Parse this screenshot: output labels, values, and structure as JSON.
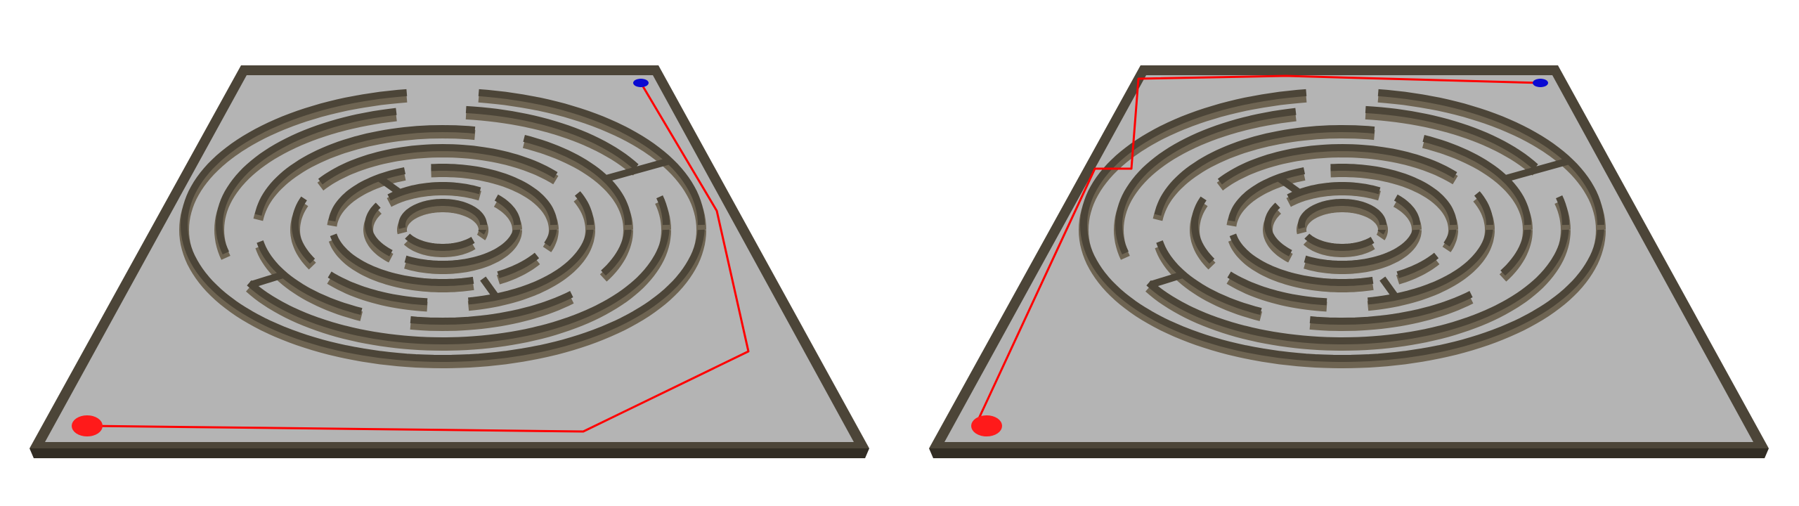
{
  "scene": {
    "background_color": "#ffffff"
  },
  "colors": {
    "floor": "#b4b4b4",
    "wall_top": "#4c4538",
    "wall_side": "#6e6452",
    "wall_dark": "#322d24",
    "path": "#ff0000",
    "start_marker": "#ff1a1a",
    "goal_marker": "#0a0ad2"
  },
  "maze": {
    "type": "circular-maze",
    "ring_count": 7
  },
  "boards": [
    {
      "name": "left-board",
      "path_label": "route-along-right-side",
      "path_icon": "red-path-line",
      "start_icon": "red-ball-icon",
      "goal_icon": "blue-goal-icon"
    },
    {
      "name": "right-board",
      "path_label": "route-along-left-side",
      "path_icon": "red-path-line",
      "start_icon": "red-ball-icon",
      "goal_icon": "blue-goal-icon"
    }
  ]
}
